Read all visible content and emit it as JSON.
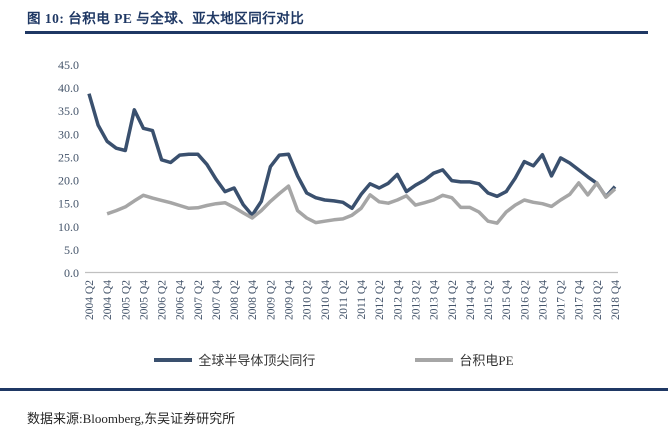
{
  "figure": {
    "title": "图 10:  台积电 PE 与全球、亚太地区同行对比",
    "source": "数据来源:Bloomberg,东吴证券研究所"
  },
  "colors": {
    "accent_navy": "#1f3864",
    "series_global": "#3a506e",
    "series_tsmc": "#a6a6a6",
    "axis_text": "#44546a",
    "axis_line": "#c0c0c0"
  },
  "chart_data": {
    "type": "line",
    "title": "",
    "xlabel": "",
    "ylabel": "",
    "ylim": [
      0,
      45
    ],
    "ytick_step": 5,
    "grid": false,
    "legend_position": "bottom",
    "x_tick_every": 2,
    "x": [
      "2004 Q2",
      "2004 Q3",
      "2004 Q4",
      "2005 Q1",
      "2005 Q2",
      "2005 Q3",
      "2005 Q4",
      "2006 Q1",
      "2006 Q2",
      "2006 Q3",
      "2006 Q4",
      "2007 Q1",
      "2007 Q2",
      "2007 Q3",
      "2007 Q4",
      "2008 Q1",
      "2008 Q2",
      "2008 Q3",
      "2008 Q4",
      "2009 Q1",
      "2009 Q2",
      "2009 Q3",
      "2009 Q4",
      "2010 Q1",
      "2010 Q2",
      "2010 Q3",
      "2010 Q4",
      "2011 Q1",
      "2011 Q2",
      "2011 Q3",
      "2011 Q4",
      "2012 Q1",
      "2012 Q2",
      "2012 Q3",
      "2012 Q4",
      "2013 Q1",
      "2013 Q2",
      "2013 Q3",
      "2013 Q4",
      "2014 Q1",
      "2014 Q2",
      "2014 Q3",
      "2014 Q4",
      "2015 Q1",
      "2015 Q2",
      "2015 Q3",
      "2015 Q4",
      "2016 Q1",
      "2016 Q2",
      "2016 Q3",
      "2016 Q4",
      "2017 Q1",
      "2017 Q2",
      "2017 Q3",
      "2017 Q4",
      "2018 Q1",
      "2018 Q2",
      "2018 Q3",
      "2018 Q4"
    ],
    "series": [
      {
        "name": "全球半导体顶尖同行",
        "color": "#3a506e",
        "values": [
          38.8,
          32.0,
          28.5,
          27.0,
          26.5,
          35.3,
          31.3,
          30.8,
          24.5,
          23.9,
          25.5,
          25.7,
          25.7,
          23.5,
          20.3,
          17.6,
          18.4,
          14.8,
          12.5,
          15.5,
          23.0,
          25.5,
          25.7,
          21.0,
          17.3,
          16.3,
          15.8,
          15.6,
          15.3,
          14.0,
          17.0,
          19.3,
          18.4,
          19.4,
          21.3,
          17.6,
          19.0,
          20.1,
          21.6,
          22.3,
          20.0,
          19.7,
          19.7,
          19.3,
          17.3,
          16.6,
          17.6,
          20.5,
          24.1,
          23.2,
          25.6,
          21.0,
          24.9,
          23.8,
          22.3,
          20.8,
          19.4,
          16.5,
          18.7
        ]
      },
      {
        "name": "台积电PE",
        "color": "#a6a6a6",
        "values": [
          null,
          null,
          12.8,
          13.5,
          14.3,
          15.6,
          16.8,
          16.2,
          15.7,
          15.2,
          14.6,
          14.0,
          14.1,
          14.6,
          15.0,
          15.2,
          14.2,
          13.0,
          11.9,
          13.5,
          15.5,
          17.2,
          18.8,
          13.5,
          11.9,
          10.9,
          11.2,
          11.5,
          11.7,
          12.5,
          14.0,
          16.9,
          15.4,
          15.1,
          15.8,
          16.7,
          14.7,
          15.2,
          15.8,
          16.8,
          16.3,
          14.2,
          14.2,
          13.2,
          11.2,
          10.8,
          13.2,
          14.7,
          15.8,
          15.3,
          15.0,
          14.4,
          15.8,
          17.0,
          19.5,
          16.9,
          19.5,
          16.4,
          18.2
        ]
      }
    ]
  }
}
